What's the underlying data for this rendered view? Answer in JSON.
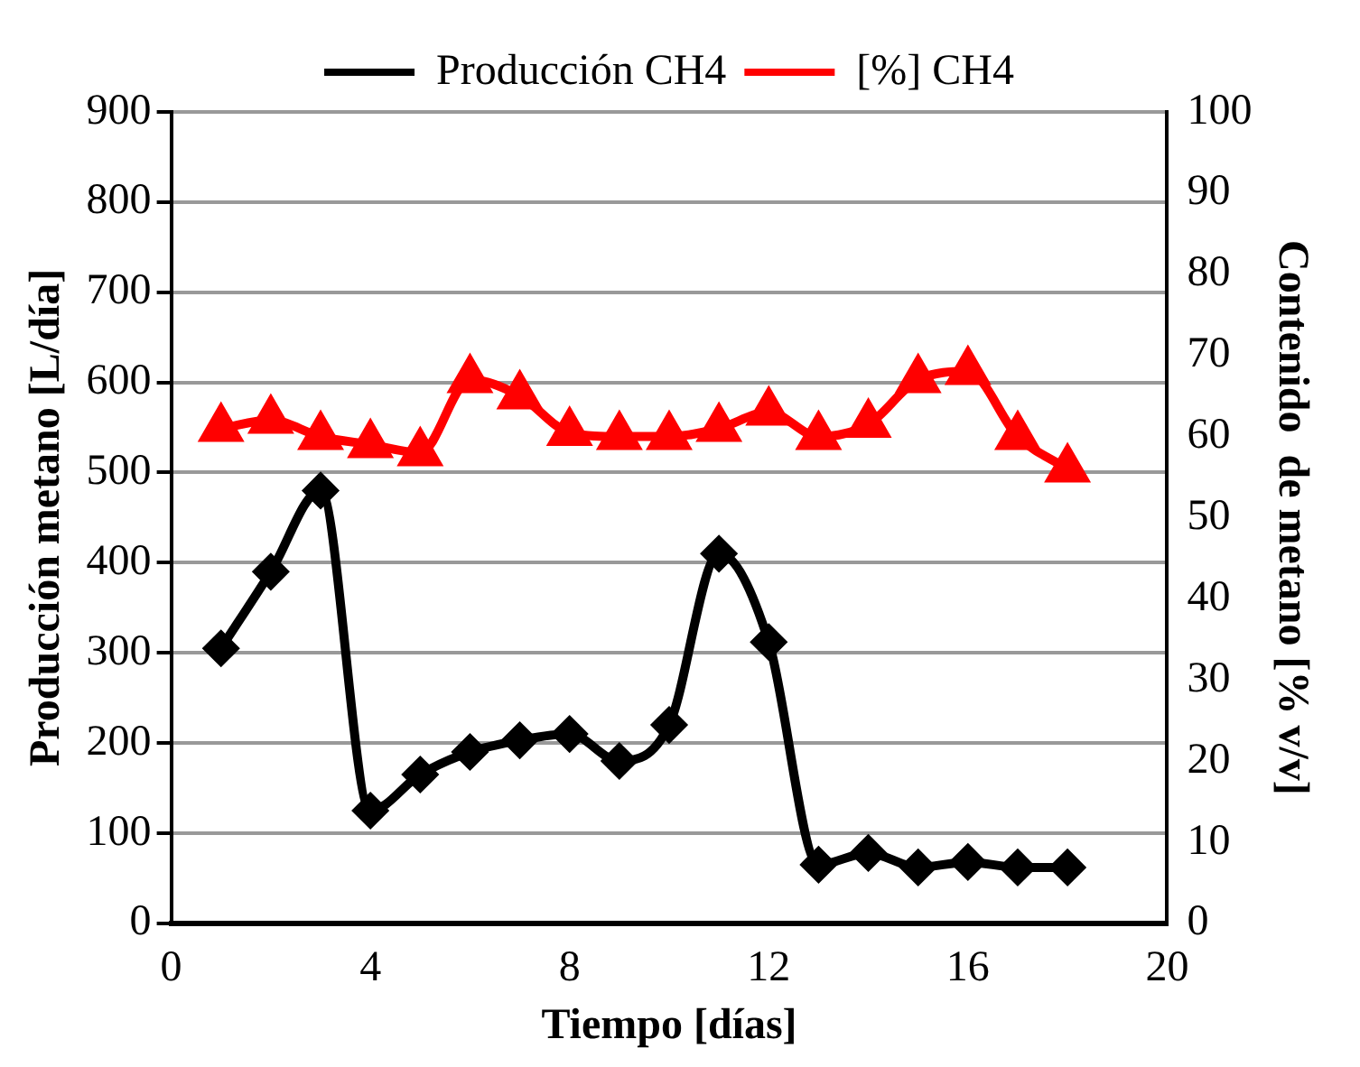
{
  "chart_data": {
    "type": "line",
    "xlabel": "Tiempo [días]",
    "ylabel": "Producción metano [L/día]",
    "y2label": "Contenido  de metano [% v/v]",
    "x": [
      1,
      2,
      3,
      4,
      5,
      6,
      7,
      8,
      9,
      10,
      11,
      12,
      13,
      14,
      15,
      16,
      17,
      18
    ],
    "series": [
      {
        "name": "Producción CH4",
        "color": "#000000",
        "marker": "diamond",
        "values": [
          305,
          390,
          480,
          125,
          165,
          190,
          203,
          210,
          180,
          220,
          410,
          312,
          65,
          78,
          62,
          68,
          62,
          62
        ]
      },
      {
        "name": "[%] CH4",
        "color": "#ff0000",
        "marker": "triangle",
        "axis": "y2",
        "values": [
          61,
          62,
          60,
          59,
          58,
          67,
          65,
          60.5,
          60,
          60,
          61,
          63,
          60,
          61.5,
          67,
          68,
          60,
          56
        ]
      }
    ],
    "xlim": [
      0,
      20
    ],
    "xticks": [
      0,
      4,
      8,
      12,
      16,
      20
    ],
    "ylim": [
      0,
      900
    ],
    "yticks": [
      0,
      100,
      200,
      300,
      400,
      500,
      600,
      700,
      800,
      900
    ],
    "y2lim": [
      0,
      100
    ],
    "y2ticks": [
      0,
      10,
      20,
      30,
      40,
      50,
      60,
      70,
      80,
      90,
      100
    ],
    "grid": "y",
    "legend": "top"
  }
}
